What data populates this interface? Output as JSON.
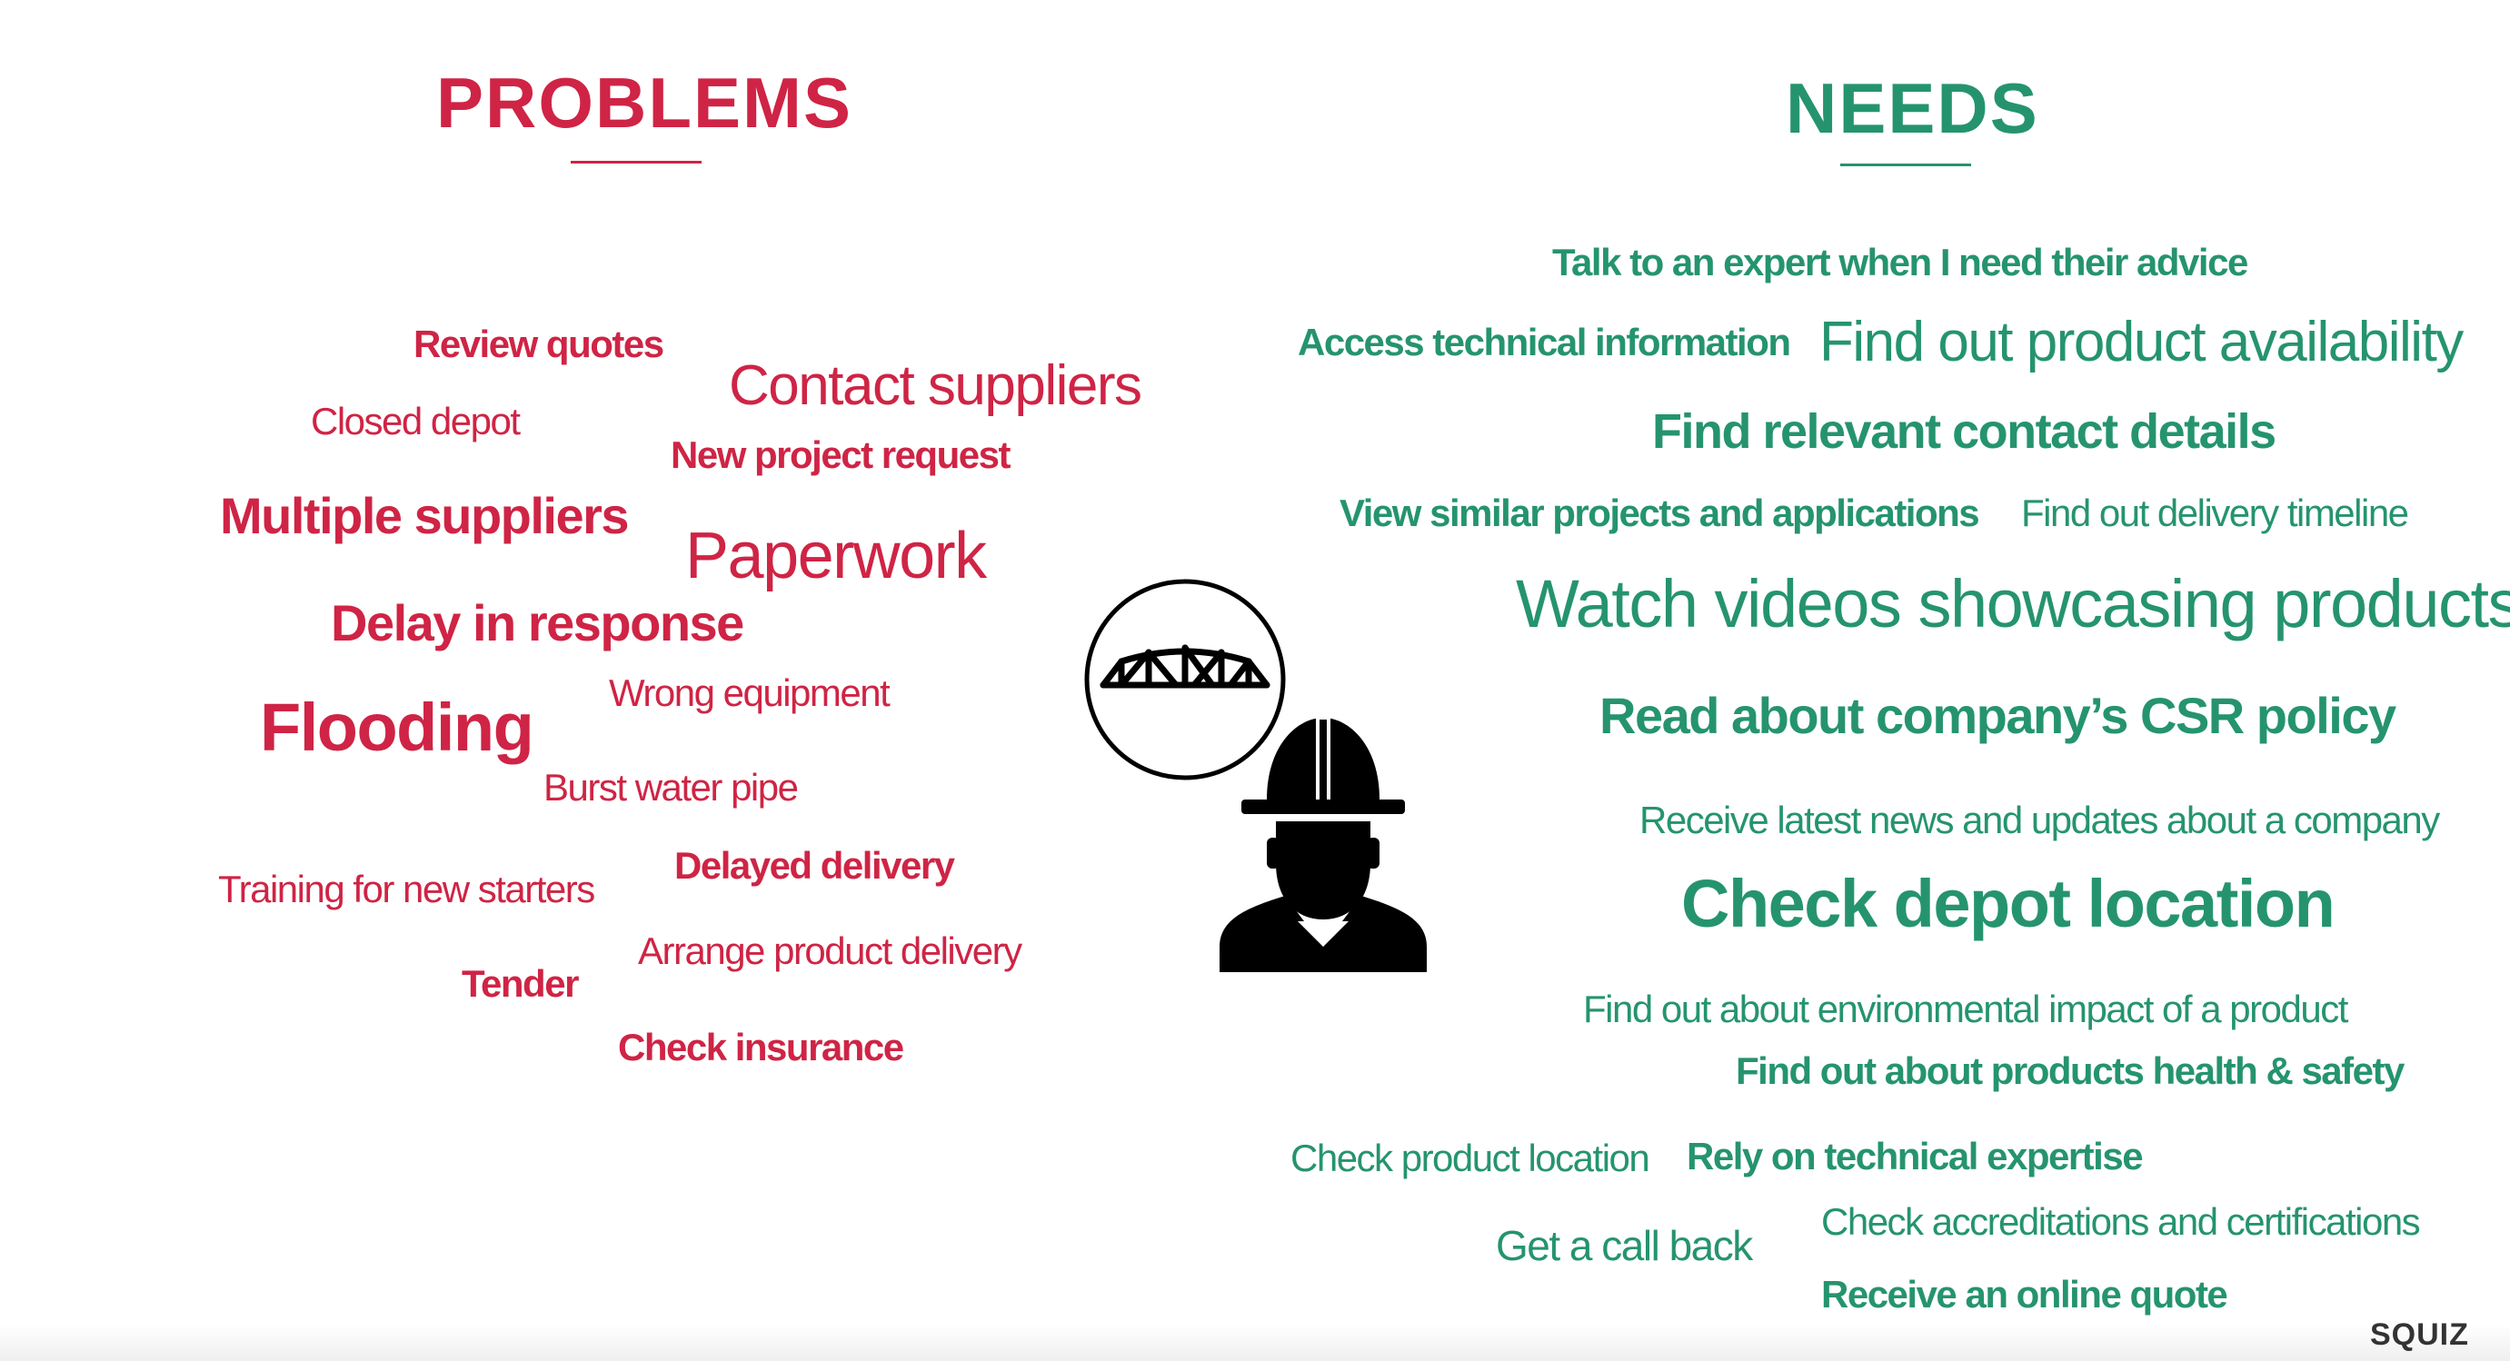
{
  "headings": {
    "problems": "PROBLEMS",
    "needs": "NEEDS"
  },
  "colors": {
    "problems": "#cf2445",
    "needs": "#25946e"
  },
  "icons": {
    "bridge": "bridge-icon",
    "worker": "construction-worker-icon"
  },
  "problems": [
    "Review quotes",
    "Contact suppliers",
    "Closed depot",
    "New project request",
    "Multiple suppliers",
    "Paperwork",
    "Delay in response",
    "Wrong equipment",
    "Flooding",
    "Burst water pipe",
    "Delayed delivery",
    "Training for new starters",
    "Arrange product delivery",
    "Tender",
    "Check insurance"
  ],
  "needs": [
    "Talk to an expert when I need their advice",
    "Access technical information",
    "Find out product availability",
    "Find relevant contact details",
    "View similar projects and applications",
    "Find out delivery timeline",
    "Watch videos showcasing products",
    "Read about company’s CSR policy",
    "Receive latest news and updates about a  company",
    "Check depot location",
    "Find out about environmental impact of a product",
    "Find out about products health & safety",
    "Check product location",
    "Rely on technical expertise",
    "Check accreditations and certifications",
    "Get a call back",
    "Receive an online quote"
  ],
  "brand": "SQUIZ"
}
